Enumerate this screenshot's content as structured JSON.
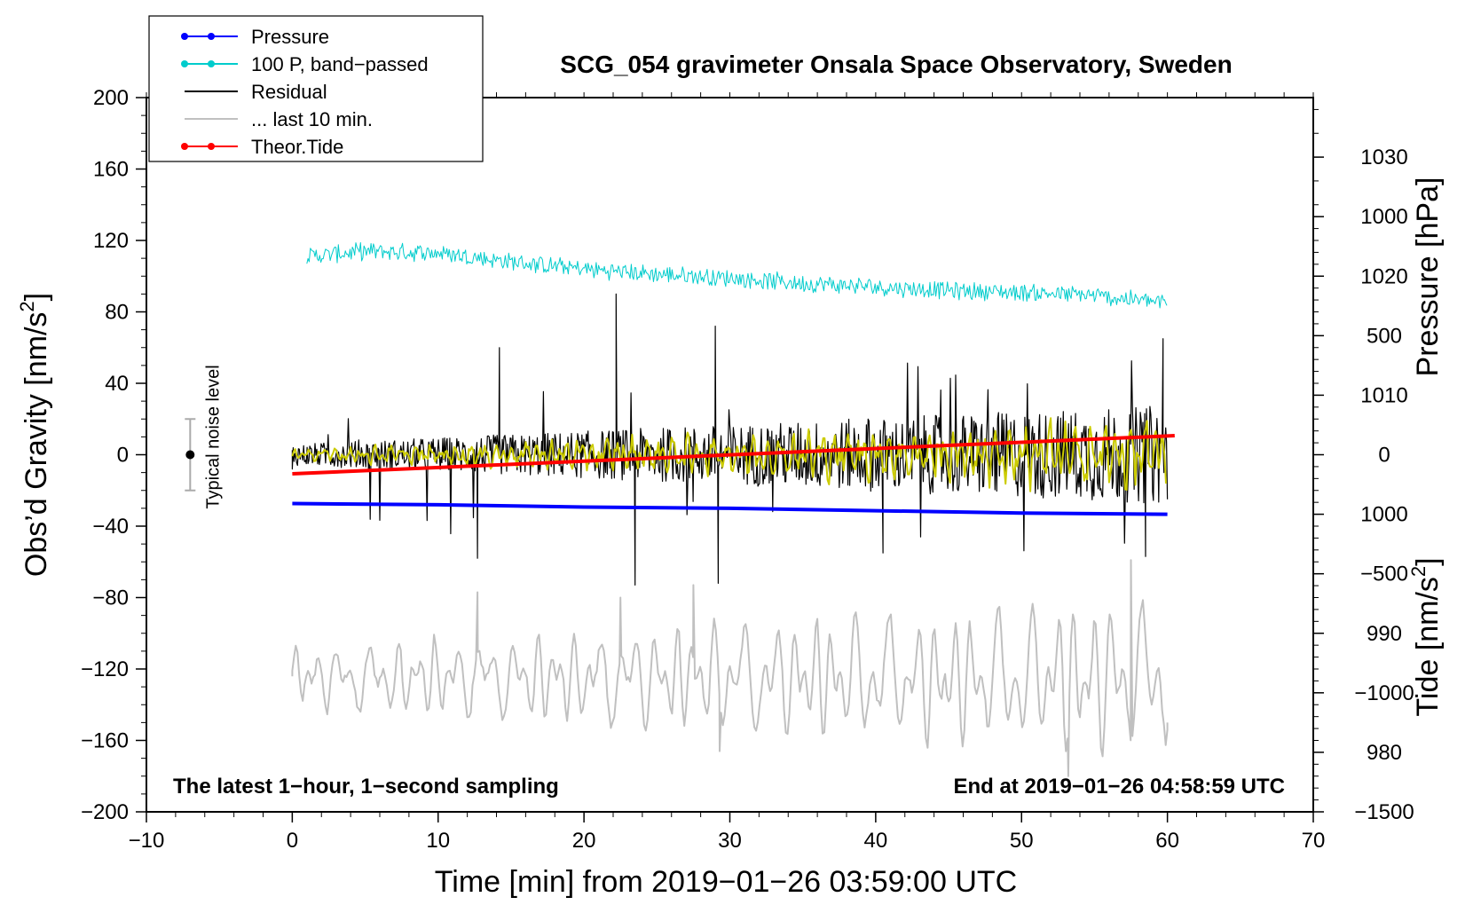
{
  "chart_data": {
    "type": "line",
    "title": "SCG_054 gravimeter Onsala Space Observatory, Sweden",
    "xlabel": "Time [min] from 2019−01−26 03:59:00 UTC",
    "ylabel_main": "Obs’d Gravity [nm/s",
    "ylabel_pressure": "Pressure [hPa]",
    "ylabel_tide": "Tide [nm/s",
    "superscript": "2",
    "closing_bracket": "]",
    "xlim": [
      -10,
      70
    ],
    "ylim": [
      -200,
      200
    ],
    "pressure_lim": [
      975,
      1035
    ],
    "tide_lim": [
      -1500,
      1500
    ],
    "xticks": [
      -10,
      0,
      10,
      20,
      30,
      40,
      50,
      60,
      70
    ],
    "xtick_labels": [
      "−10",
      "0",
      "10",
      "20",
      "30",
      "40",
      "50",
      "60",
      "70"
    ],
    "yticks": [
      200,
      160,
      120,
      80,
      40,
      0,
      -40,
      -80,
      -120,
      -160,
      -200
    ],
    "ytick_labels": [
      "200",
      "160",
      "120",
      "80",
      "40",
      "0",
      "−40",
      "−80",
      "−120",
      "−160",
      "−200"
    ],
    "pressure_ticks": [
      1030,
      1020,
      1010,
      1000,
      990,
      980
    ],
    "pressure_tick_labels": [
      "1030",
      "1020",
      "1010",
      "1000",
      "990",
      "980"
    ],
    "tide_ticks": [
      1000,
      500,
      0,
      -500,
      -1000,
      -1500
    ],
    "tide_tick_labels": [
      "1000",
      "500",
      "0",
      "−500",
      "−1000",
      "−1500"
    ],
    "annotation_left": "The latest 1−hour, 1−second sampling",
    "annotation_right": "End at 2019−01−26 04:58:59 UTC",
    "noise_label": "Typical noise level",
    "noise_bar": {
      "x": -7,
      "center": 0,
      "half_range": 20
    },
    "legend": [
      {
        "label": "Pressure",
        "color": "#0000ff",
        "marker": true
      },
      {
        "label": "100 P, band−passed",
        "color": "#00cccc",
        "marker": true
      },
      {
        "label": "Residual",
        "color": "#000000",
        "marker": false
      },
      {
        "label": "... last 10 min.",
        "color": "#c0c0c0",
        "marker": false
      },
      {
        "label": "Theor.Tide",
        "color": "#ff0000",
        "marker": true
      }
    ],
    "series": [
      {
        "name": "Pressure",
        "color": "#0000ff",
        "axis": "pressure",
        "x": [
          0,
          10,
          20,
          30,
          40,
          50,
          60
        ],
        "values": [
          1000.9,
          1000.8,
          1000.6,
          1000.5,
          1000.3,
          1000.1,
          1000.0
        ]
      },
      {
        "name": "100 P, band-passed",
        "color": "#00cccc",
        "axis": "gravity",
        "x": [
          1,
          5,
          10,
          15,
          20,
          25,
          30,
          35,
          40,
          45,
          50,
          55,
          60
        ],
        "values": [
          111,
          114,
          113,
          108,
          104,
          101,
          99,
          96,
          94,
          92,
          91,
          89,
          85
        ]
      },
      {
        "name": "Residual",
        "color": "#000000",
        "axis": "gravity",
        "x": [
          0,
          10,
          12.7,
          14.2,
          22.2,
          23.5,
          29,
          29.2,
          40.5,
          58.5,
          59.7,
          60
        ],
        "values": [
          -8,
          6,
          -58,
          60,
          90,
          -73,
          72,
          -72,
          -55,
          -57,
          65,
          -25
        ]
      },
      {
        "name": "... last 10 min.",
        "color": "#c0c0c0",
        "axis": "gravity",
        "x": [
          0,
          12.7,
          22.5,
          27.5,
          29.3,
          53.2,
          57.5,
          60
        ],
        "values": [
          -121,
          -77,
          -80,
          -73,
          -166,
          -180,
          -59,
          -150
        ]
      },
      {
        "name": "Theor.Tide",
        "color": "#ff0000",
        "axis": "tide",
        "x": [
          0,
          60.5
        ],
        "values": [
          -80,
          80
        ]
      }
    ]
  }
}
